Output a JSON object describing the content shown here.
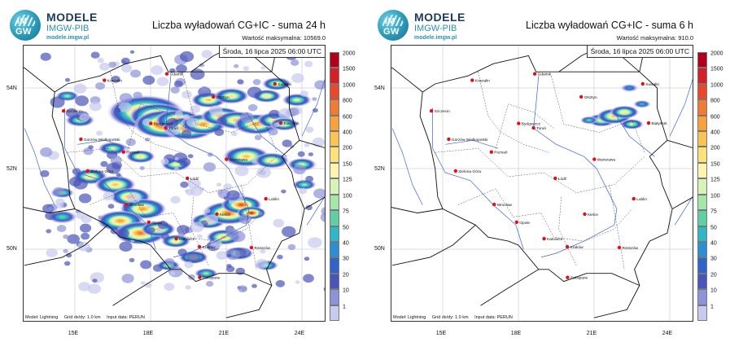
{
  "branding": {
    "logo_mark_top": "IM",
    "logo_mark_bottom": "GW",
    "name": "MODELE",
    "org": "IMGW-PIB",
    "url": "modele.imgw.pl"
  },
  "map_common": {
    "valid_time": "Środa, 16 lipca 2025 06:00 UTC",
    "lat_labels": [
      "54N",
      "52N",
      "50N"
    ],
    "lon_labels": [
      "15E",
      "18E",
      "21E",
      "24E"
    ],
    "footer": {
      "model": "Model: Lightning",
      "grid": "Grid dx/dy: 1.0 km",
      "input": "Input data: PERUN"
    },
    "cities": [
      {
        "name": "Gdańsk",
        "lat": 54.35,
        "lon": 18.65
      },
      {
        "name": "Koszalin",
        "lat": 54.19,
        "lon": 16.17
      },
      {
        "name": "Suwałki",
        "lat": 54.1,
        "lon": 22.93
      },
      {
        "name": "Olsztyn",
        "lat": 53.78,
        "lon": 20.49
      },
      {
        "name": "Szczecin",
        "lat": 53.43,
        "lon": 14.55
      },
      {
        "name": "Bydgoszcz",
        "lat": 53.12,
        "lon": 18.01
      },
      {
        "name": "Toruń",
        "lat": 53.01,
        "lon": 18.6
      },
      {
        "name": "Białystok",
        "lat": 53.13,
        "lon": 23.16
      },
      {
        "name": "Gorzów Wielkopolski",
        "lat": 52.73,
        "lon": 15.24
      },
      {
        "name": "Poznań",
        "lat": 52.41,
        "lon": 16.93
      },
      {
        "name": "Warszawa",
        "lat": 52.23,
        "lon": 21.01
      },
      {
        "name": "Zielona Góra",
        "lat": 51.94,
        "lon": 15.51
      },
      {
        "name": "Łódź",
        "lat": 51.76,
        "lon": 19.46
      },
      {
        "name": "Lublin",
        "lat": 51.25,
        "lon": 22.57
      },
      {
        "name": "Wrocław",
        "lat": 51.11,
        "lon": 17.04
      },
      {
        "name": "Opole",
        "lat": 50.67,
        "lon": 17.93
      },
      {
        "name": "Kielce",
        "lat": 50.87,
        "lon": 20.63
      },
      {
        "name": "Katowice",
        "lat": 50.26,
        "lon": 19.02
      },
      {
        "name": "Kraków",
        "lat": 50.06,
        "lon": 19.94
      },
      {
        "name": "Rzeszów",
        "lat": 50.04,
        "lon": 22.0
      },
      {
        "name": "Zakopane",
        "lat": 49.3,
        "lon": 19.95
      }
    ]
  },
  "legend": {
    "labels": [
      "2000",
      "1500",
      "1000",
      "800",
      "600",
      "400",
      "200",
      "150",
      "125",
      "100",
      "75",
      "50",
      "40",
      "30",
      "20",
      "10",
      "1"
    ],
    "colors": [
      "#b0001e",
      "#d62027",
      "#e8492c",
      "#f07b32",
      "#f7a23c",
      "#fbc352",
      "#fde27a",
      "#fdf4b0",
      "#d8f3b8",
      "#a6e7a9",
      "#5fcfa6",
      "#2fb7c5",
      "#2c8fd6",
      "#2f64c8",
      "#4a55b8",
      "#8d93d9",
      "#c8cbf0"
    ]
  },
  "panels": [
    {
      "title": "Liczba wyładowań CG+IC - suma 24 h",
      "max_value": "Wartość maksymalna: 10569.0"
    },
    {
      "title": "Liczba wyładowań CG+IC - suma 6 h",
      "max_value": "Wartość maksymalna: 910.0"
    }
  ]
}
